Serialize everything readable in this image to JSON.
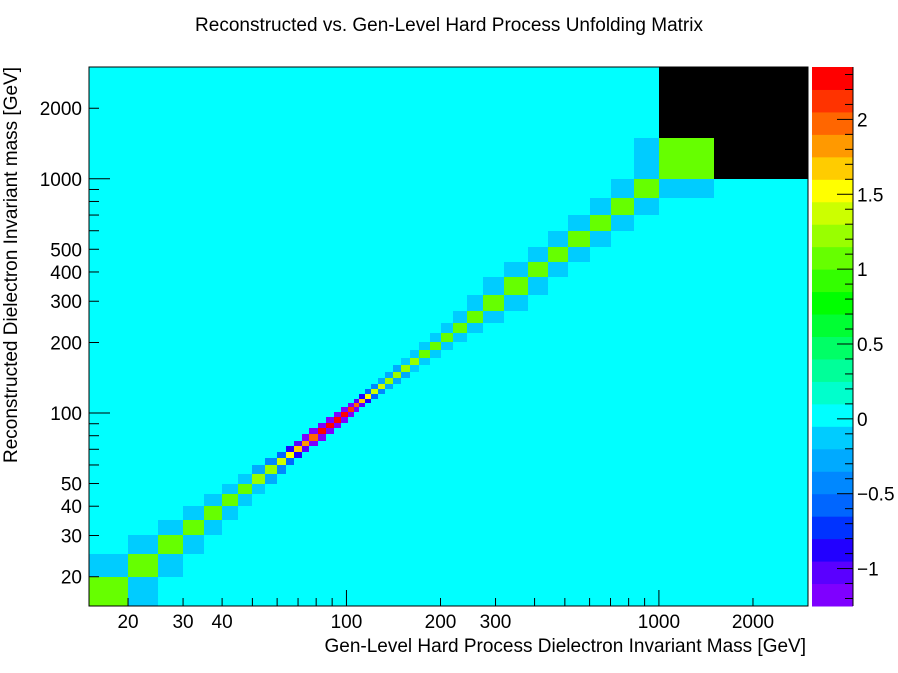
{
  "chart_data": {
    "type": "heatmap",
    "title": "Reconstructed vs. Gen-Level Hard Process Unfolding Matrix",
    "xlabel": "Gen-Level Hard Process Dielectron Invariant Mass [GeV]",
    "ylabel": "Reconstructed Dielectron Invariant mass [GeV]",
    "xscale": "log",
    "yscale": "log",
    "x_range": [
      15,
      3000
    ],
    "y_range": [
      15,
      3000
    ],
    "x_tick_labels": [
      20,
      30,
      40,
      100,
      200,
      300,
      1000,
      2000
    ],
    "y_tick_labels": [
      20,
      30,
      40,
      50,
      100,
      200,
      300,
      400,
      500,
      1000,
      2000
    ],
    "z_range": [
      -1.25,
      2.35
    ],
    "z_tick_labels": [
      "−1",
      "−0.5",
      "0",
      "0.5",
      "1",
      "1.5",
      "2"
    ],
    "background_value": 0,
    "bin_edges": [
      15,
      20,
      25,
      30,
      35,
      40,
      45,
      50,
      55,
      60,
      64,
      68,
      72,
      76,
      81,
      86,
      91,
      96,
      101,
      106,
      110,
      115,
      120,
      126,
      133,
      141,
      150,
      160,
      171,
      185,
      200,
      220,
      243,
      273,
      320,
      380,
      440,
      510,
      600,
      700,
      830,
      1000,
      1500,
      3000
    ],
    "diagonal": [
      1.1,
      1.1,
      1.1,
      1.1,
      1.1,
      1.1,
      1.1,
      1.15,
      1.2,
      1.3,
      1.45,
      1.65,
      1.8,
      2.0,
      2.2,
      2.3,
      2.35,
      2.3,
      2.1,
      1.9,
      1.7,
      1.55,
      1.4,
      1.3,
      1.25,
      1.2,
      1.2,
      1.15,
      1.1,
      1.1,
      1.1,
      1.1,
      1.1,
      1.1,
      1.1,
      1.1,
      1.1,
      1.1,
      1.1,
      1.1,
      1.1,
      1.1
    ],
    "off_diagonal": [
      -0.2,
      -0.2,
      -0.2,
      -0.2,
      -0.2,
      -0.2,
      -0.2,
      -0.35,
      -0.45,
      -0.6,
      -0.8,
      -1.0,
      -1.15,
      -1.2,
      -1.2,
      -1.2,
      -1.2,
      -1.15,
      -1.1,
      -1.0,
      -0.8,
      -0.6,
      -0.45,
      -0.35,
      -0.3,
      -0.25,
      -0.2,
      -0.2,
      -0.2,
      -0.2,
      -0.2,
      -0.2,
      -0.2,
      -0.2,
      -0.2,
      -0.2,
      -0.2,
      -0.2,
      -0.2,
      -0.2,
      -0.2
    ],
    "palette": [
      "#7f00ff",
      "#5a00ff",
      "#2200ff",
      "#0033ff",
      "#0066ff",
      "#0088ff",
      "#00aaff",
      "#00ccff",
      "#00ffff",
      "#00ffcc",
      "#00ff99",
      "#00ff66",
      "#00ff33",
      "#00ff00",
      "#33ff00",
      "#66ff00",
      "#99ff00",
      "#ccff00",
      "#ffff00",
      "#ffcc00",
      "#ff9900",
      "#ff6600",
      "#ff3300",
      "#ff0000"
    ]
  }
}
